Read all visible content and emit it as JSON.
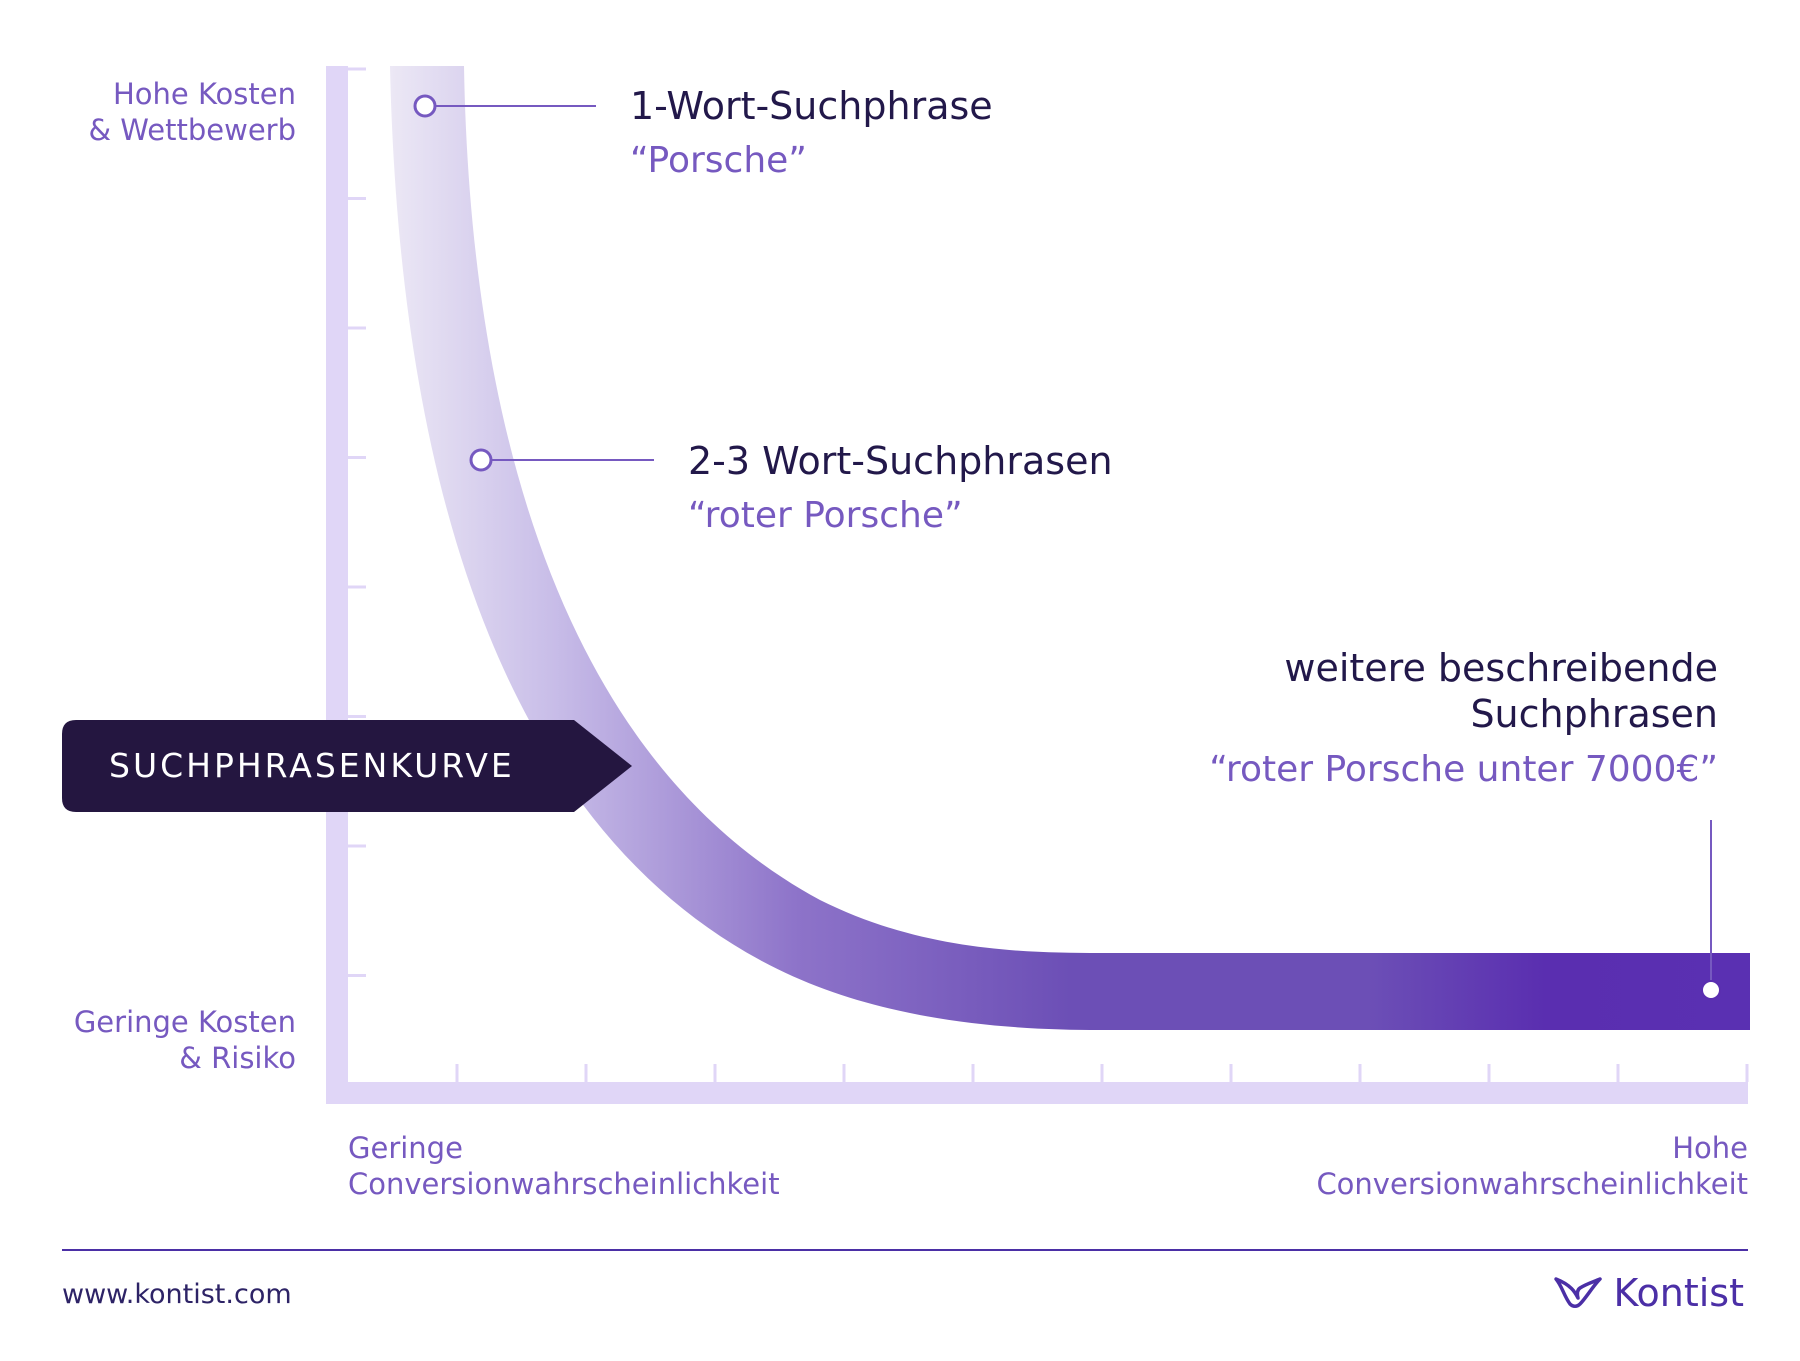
{
  "y_axis": {
    "top_label": [
      "Hohe Kosten",
      "& Wettbewerb"
    ],
    "bottom_label": [
      "Geringe Kosten",
      "& Risiko"
    ]
  },
  "x_axis": {
    "left_label": [
      "Geringe",
      "Conversionwahrscheinlichkeit"
    ],
    "right_label": [
      "Hohe",
      "Conversionwahrscheinlichkeit"
    ]
  },
  "curve_badge": "SUCHPHRASENKURVE",
  "callouts": [
    {
      "title": "1-Wort-Suchphrase",
      "example": "“Porsche”"
    },
    {
      "title": "2-3 Wort-Suchphrasen",
      "example": "“roter Porsche”"
    },
    {
      "title_lines": [
        "weitere beschreibende",
        "Suchphrasen"
      ],
      "example": "“roter Porsche unter 7000€”"
    }
  ],
  "footer": {
    "url": "www.kontist.com",
    "brand": "Kontist",
    "brand_icon": "leaf-cup-icon"
  },
  "colors": {
    "axis": "#e0d6f7",
    "curve_light": "#ece8f5",
    "curve_dark": "#5a2eb0",
    "accent": "#7659c0",
    "dark": "#22184a",
    "badge": "#241640"
  }
}
